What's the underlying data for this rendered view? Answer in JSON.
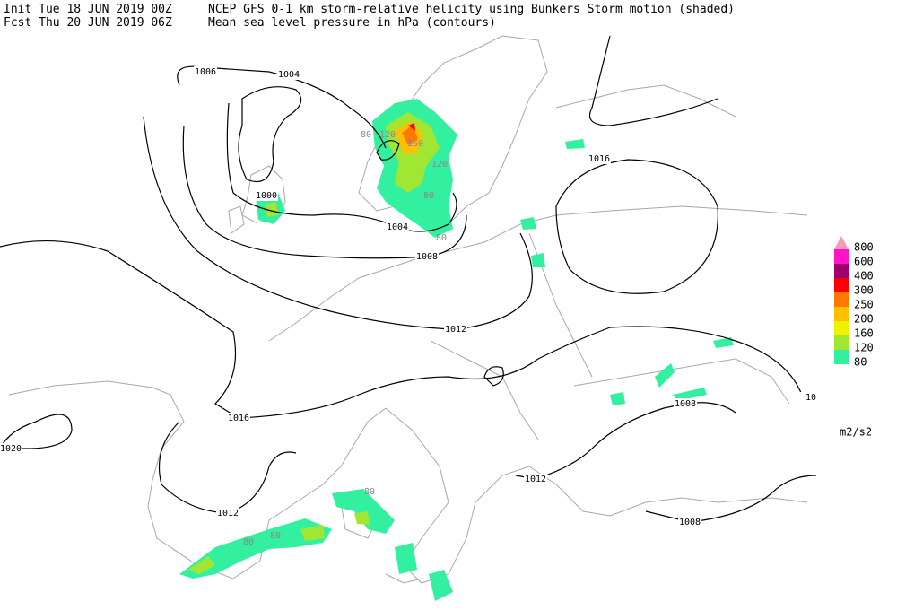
{
  "header": {
    "init": "Init  Tue 18 JUN 2019 00Z",
    "fcst": "Fcst Thu 20 JUN 2019 06Z",
    "title": "NCEP GFS 0-1 km storm-relative helicity using Bunkers Storm motion (shaded)",
    "subtitle": "Mean sea level pressure in hPa (contours)"
  },
  "legend": {
    "items": [
      {
        "label": "800",
        "color": "#f59ab8"
      },
      {
        "label": "600",
        "color": "#ff14c8"
      },
      {
        "label": "400",
        "color": "#a0006e"
      },
      {
        "label": "300",
        "color": "#ff0000"
      },
      {
        "label": "250",
        "color": "#ff7800"
      },
      {
        "label": "200",
        "color": "#ffc000"
      },
      {
        "label": "160",
        "color": "#f0f000"
      },
      {
        "label": "120",
        "color": "#a0e632"
      },
      {
        "label": "80",
        "color": "#32f0a0"
      }
    ],
    "units": "m2/s2"
  },
  "pressure_labels": [
    "1006",
    "1004",
    "1000",
    "1004",
    "1008",
    "1012",
    "1016",
    "1016",
    "1020",
    "1012",
    "1012",
    "1008",
    "1008",
    "10"
  ],
  "helicity_labels": [
    "80",
    "120",
    "160",
    "120",
    "80",
    "80",
    "80",
    "80",
    "80"
  ]
}
